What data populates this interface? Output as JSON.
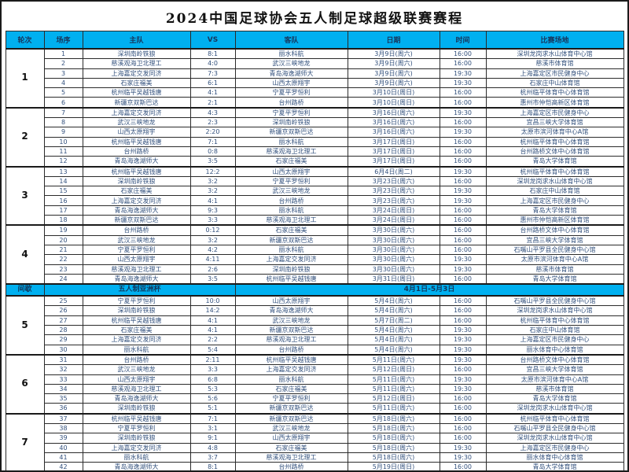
{
  "title": "2024中国足球协会五人制足球超级联赛赛程",
  "columns": [
    "轮次",
    "场序",
    "主队",
    "VS",
    "客队",
    "日期",
    "时间",
    "比赛场地"
  ],
  "colors": {
    "header_bg": "#00b0f0",
    "body_text": "#33517d",
    "header_text": "#17365d",
    "border": "#2b2b2b",
    "round_text": "#111111"
  },
  "sections": [
    {
      "type": "round",
      "round": "1",
      "matches": [
        {
          "no": "1",
          "home": "深圳南岭铁狼",
          "score": "8:1",
          "away": "丽水科航",
          "date": "3月9日(周六)",
          "time": "16:00",
          "venue": "深圳龙岗求水山体育中心馆"
        },
        {
          "no": "2",
          "home": "慈溪观海卫北理工",
          "score": "4:0",
          "away": "武汉三峡地龙",
          "date": "3月9日(周六)",
          "time": "16:00",
          "venue": "慈溪市体育馆"
        },
        {
          "no": "3",
          "home": "上海嘉定交发同济",
          "score": "7:3",
          "away": "青岛海逸湖师大",
          "date": "3月9日(周六)",
          "time": "19:30",
          "venue": "上海嘉定区市民健身中心"
        },
        {
          "no": "4",
          "home": "石家庄福美",
          "score": "6:1",
          "away": "山西太原翔宇",
          "date": "3月9日(周六)",
          "time": "19:30",
          "venue": "石家庄中山体育馆"
        },
        {
          "no": "5",
          "home": "杭州临平吴越钱唐",
          "score": "4:1",
          "away": "宁夏平罗恒利",
          "date": "3月10日(周日)",
          "time": "16:00",
          "venue": "杭州临平体育中心体育馆"
        },
        {
          "no": "6",
          "home": "新疆京双斯巴达",
          "score": "2:1",
          "away": "台州路桥",
          "date": "3月10日(周日)",
          "time": "16:00",
          "venue": "惠州市仲恺高新区体育馆"
        }
      ]
    },
    {
      "type": "round",
      "round": "2",
      "matches": [
        {
          "no": "7",
          "home": "上海嘉定交发同济",
          "score": "4:3",
          "away": "宁夏平罗恒利",
          "date": "3月16日(周六)",
          "time": "19:30",
          "venue": "上海嘉定区市民健身中心"
        },
        {
          "no": "8",
          "home": "武汉三峡地龙",
          "score": "2:3",
          "away": "深圳南岭铁狼",
          "date": "3月16日(周六)",
          "time": "16:00",
          "venue": "宜昌三峡大学体育馆"
        },
        {
          "no": "9",
          "home": "山西太原翔宇",
          "score": "2:20",
          "away": "新疆京双斯巴达",
          "date": "3月16日(周六)",
          "time": "19:30",
          "venue": "太原市滨河体育中心A馆"
        },
        {
          "no": "10",
          "home": "杭州临平吴越钱唐",
          "score": "7:1",
          "away": "丽水科航",
          "date": "3月17日(周日)",
          "time": "16:00",
          "venue": "杭州临平体育中心体育馆"
        },
        {
          "no": "11",
          "home": "台州路桥",
          "score": "0:8",
          "away": "慈溪观海卫北理工",
          "date": "3月17日(周日)",
          "time": "16:00",
          "venue": "台州路桥文体中心体育馆"
        },
        {
          "no": "12",
          "home": "青岛海逸湖师大",
          "score": "3:5",
          "away": "石家庄福美",
          "date": "3月17日(周日)",
          "time": "16:00",
          "venue": "青岛大学体育馆"
        }
      ]
    },
    {
      "type": "round",
      "round": "3",
      "matches": [
        {
          "no": "13",
          "home": "杭州临平吴越钱唐",
          "score": "12:2",
          "away": "山西太原翔宇",
          "date": "6月4日(周二)",
          "time": "19:30",
          "venue": "杭州临平体育中心体育馆"
        },
        {
          "no": "14",
          "home": "深圳南岭铁狼",
          "score": "3:2",
          "away": "宁夏平罗恒利",
          "date": "3月23日(周六)",
          "time": "16:00",
          "venue": "深圳龙岗求水山体育中心馆"
        },
        {
          "no": "15",
          "home": "石家庄福美",
          "score": "3:2",
          "away": "武汉三峡地龙",
          "date": "3月23日(周六)",
          "time": "19:30",
          "venue": "石家庄中山体育馆"
        },
        {
          "no": "16",
          "home": "上海嘉定交发同济",
          "score": "4:1",
          "away": "台州路桥",
          "date": "3月23日(周六)",
          "time": "19:30",
          "venue": "上海嘉定区市民健身中心"
        },
        {
          "no": "17",
          "home": "青岛海逸湖师大",
          "score": "9:3",
          "away": "丽水科航",
          "date": "3月24日(周日)",
          "time": "16:00",
          "venue": "青岛大学体育馆"
        },
        {
          "no": "18",
          "home": "新疆京双斯巴达",
          "score": "3:3",
          "away": "慈溪观海卫北理工",
          "date": "3月24日(周日)",
          "time": "16:00",
          "venue": "惠州市仲恺高新区体育馆"
        }
      ]
    },
    {
      "type": "round",
      "round": "4",
      "matches": [
        {
          "no": "19",
          "home": "台州路桥",
          "score": "0:12",
          "away": "石家庄福美",
          "date": "3月30日(周六)",
          "time": "16:00",
          "venue": "台州路桥文体中心体育馆"
        },
        {
          "no": "20",
          "home": "武汉三峡地龙",
          "score": "3:2",
          "away": "新疆京双斯巴达",
          "date": "3月30日(周六)",
          "time": "16:00",
          "venue": "宜昌三峡大学体育馆"
        },
        {
          "no": "21",
          "home": "宁夏平罗恒利",
          "score": "4:2",
          "away": "丽水科航",
          "date": "3月30日(周六)",
          "time": "16:00",
          "venue": "石嘴山平罗县全民健身中心馆"
        },
        {
          "no": "22",
          "home": "山西太原翔宇",
          "score": "4:11",
          "away": "上海嘉定交发同济",
          "date": "3月30日(周六)",
          "time": "19:30",
          "venue": "太原市滨河体育中心A馆"
        },
        {
          "no": "23",
          "home": "慈溪观海卫北理工",
          "score": "2:6",
          "away": "深圳南岭铁狼",
          "date": "3月30日(周六)",
          "time": "19:30",
          "venue": "慈溪市体育馆"
        },
        {
          "no": "24",
          "home": "青岛海逸湖师大",
          "score": "3:5",
          "away": "杭州临平吴越钱唐",
          "date": "3月31日(周日)",
          "time": "16:00",
          "venue": "青岛大学体育馆"
        }
      ]
    },
    {
      "type": "interlude",
      "round_label": "间歇",
      "event": "五人制亚洲杯",
      "dates": "4月1日-5月3日"
    },
    {
      "type": "round",
      "round": "5",
      "matches": [
        {
          "no": "25",
          "home": "宁夏平罗恒利",
          "score": "10:0",
          "away": "山西太原翔宇",
          "date": "5月4日(周六)",
          "time": "16:00",
          "venue": "石嘴山平罗县全民健身中心馆"
        },
        {
          "no": "26",
          "home": "深圳南岭铁狼",
          "score": "14:2",
          "away": "青岛海逸湖师大",
          "date": "5月4日(周六)",
          "time": "16:00",
          "venue": "深圳龙岗求水山体育中心馆"
        },
        {
          "no": "27",
          "home": "杭州临平吴越钱唐",
          "score": "4:1",
          "away": "武汉三峡地龙",
          "date": "5月7日(周二)",
          "time": "16:00",
          "venue": "杭州临平体育中心体育馆"
        },
        {
          "no": "28",
          "home": "石家庄福美",
          "score": "4:1",
          "away": "新疆京双斯巴达",
          "date": "5月4日(周六)",
          "time": "19:30",
          "venue": "石家庄中山体育馆"
        },
        {
          "no": "29",
          "home": "上海嘉定交发同济",
          "score": "2:2",
          "away": "慈溪观海卫北理工",
          "date": "5月4日(周六)",
          "time": "19:30",
          "venue": "上海嘉定区市民健身中心"
        },
        {
          "no": "30",
          "home": "丽水科航",
          "score": "5:4",
          "away": "台州路桥",
          "date": "5月4日(周六)",
          "time": "19:30",
          "venue": "丽水体育中心体育馆"
        }
      ]
    },
    {
      "type": "round",
      "round": "6",
      "matches": [
        {
          "no": "31",
          "home": "台州路桥",
          "score": "2:11",
          "away": "杭州临平吴越钱唐",
          "date": "5月11日(周六)",
          "time": "19:30",
          "venue": "台州路桥文体中心体育馆"
        },
        {
          "no": "32",
          "home": "武汉三峡地龙",
          "score": "3:3",
          "away": "上海嘉定交发同济",
          "date": "5月12日(周日)",
          "time": "16:00",
          "venue": "宜昌三峡大学体育馆"
        },
        {
          "no": "33",
          "home": "山西太原翔宇",
          "score": "6:8",
          "away": "丽水科航",
          "date": "5月11日(周六)",
          "time": "19:30",
          "venue": "太原市滨河体育中心A馆"
        },
        {
          "no": "34",
          "home": "慈溪观海卫北理工",
          "score": "5:3",
          "away": "石家庄福美",
          "date": "5月11日(周六)",
          "time": "19:30",
          "venue": "慈溪市体育馆"
        },
        {
          "no": "35",
          "home": "青岛海逸湖师大",
          "score": "5:6",
          "away": "宁夏平罗恒利",
          "date": "5月12日(周日)",
          "time": "16:00",
          "venue": "青岛大学体育馆"
        },
        {
          "no": "36",
          "home": "深圳南岭铁狼",
          "score": "5:1",
          "away": "新疆京双斯巴达",
          "date": "5月11日(周六)",
          "time": "16:00",
          "venue": "深圳龙岗求水山体育中心馆"
        }
      ]
    },
    {
      "type": "round",
      "round": "7",
      "matches": [
        {
          "no": "37",
          "home": "杭州临平吴越钱唐",
          "score": "7:1",
          "away": "新疆京双斯巴达",
          "date": "5月18日(周六)",
          "time": "16:00",
          "venue": "杭州临平体育中心体育馆"
        },
        {
          "no": "38",
          "home": "宁夏平罗恒利",
          "score": "3:1",
          "away": "武汉三峡地龙",
          "date": "5月18日(周六)",
          "time": "16:00",
          "venue": "石嘴山平罗县全民健身中心馆"
        },
        {
          "no": "39",
          "home": "深圳南岭铁狼",
          "score": "9:1",
          "away": "山西太原翔宇",
          "date": "5月18日(周六)",
          "time": "16:00",
          "venue": "深圳龙岗求水山体育中心馆"
        },
        {
          "no": "40",
          "home": "上海嘉定交发同济",
          "score": "4:8",
          "away": "石家庄福美",
          "date": "5月18日(周六)",
          "time": "19:30",
          "venue": "上海嘉定区市民健身中心"
        },
        {
          "no": "41",
          "home": "丽水科航",
          "score": "3:7",
          "away": "慈溪观海卫北理工",
          "date": "5月18日(周六)",
          "time": "19:30",
          "venue": "丽水体育中心体育馆"
        },
        {
          "no": "42",
          "home": "青岛海逸湖师大",
          "score": "8:1",
          "away": "台州路桥",
          "date": "5月19日(周日)",
          "time": "16:00",
          "venue": "青岛大学体育馆"
        }
      ]
    }
  ]
}
